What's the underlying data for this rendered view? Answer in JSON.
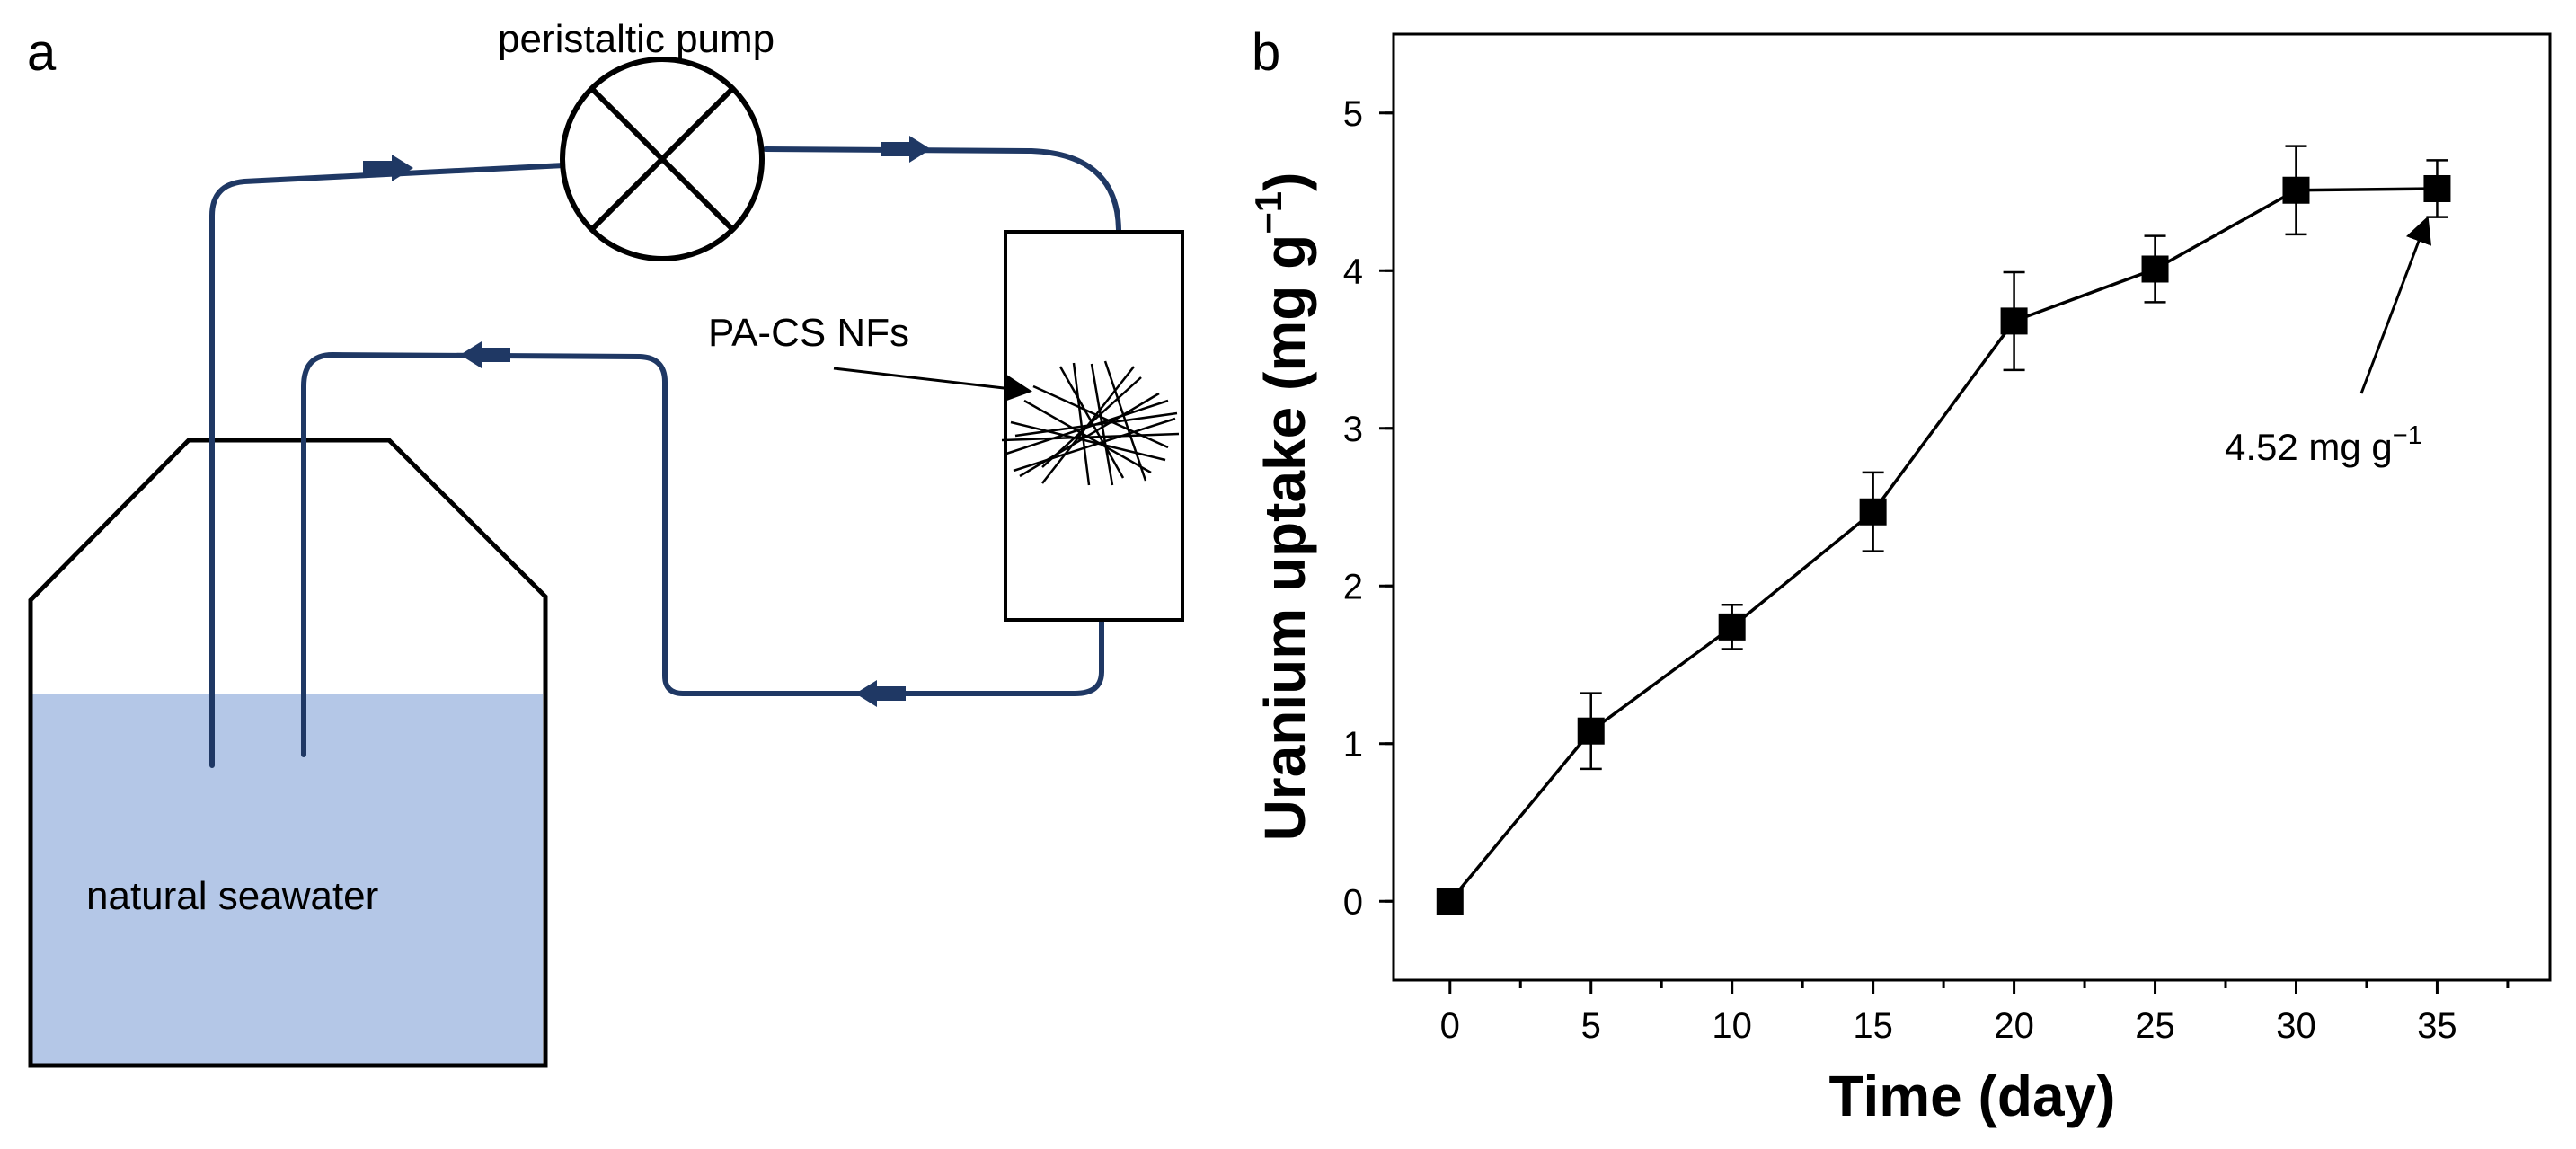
{
  "panel_a": {
    "label": "a",
    "pump_label": "peristaltic pump",
    "fiber_label": "PA-CS NFs",
    "seawater_label": "natural seawater",
    "colors": {
      "tube": "#1f3864",
      "water": "#b4c7e7",
      "outline": "#000000"
    }
  },
  "panel_b": {
    "label": "b",
    "annotation": {
      "text": "4.52 mg g",
      "superscript": "−1",
      "x": 35,
      "y": 4.52
    }
  },
  "chart_data": {
    "type": "line",
    "x": [
      0,
      5,
      10,
      15,
      20,
      25,
      30,
      35
    ],
    "series": [
      {
        "values": [
          0,
          1.08,
          1.74,
          2.47,
          3.68,
          4.01,
          4.51,
          4.52
        ],
        "errors": [
          0,
          0.24,
          0.14,
          0.25,
          0.31,
          0.21,
          0.28,
          0.18
        ],
        "marker": "square",
        "color": "#000000"
      }
    ],
    "xlabel": "Time (day)",
    "ylabel_main": "Uranium uptake (mg g",
    "ylabel_sup": "−1",
    "ylabel_end": ")",
    "xlim": [
      -2,
      39
    ],
    "ylim": [
      -0.5,
      5.5
    ],
    "xticks": [
      0,
      5,
      10,
      15,
      20,
      25,
      30,
      35
    ],
    "yticks": [
      0,
      1,
      2,
      3,
      4,
      5
    ],
    "grid": false
  }
}
